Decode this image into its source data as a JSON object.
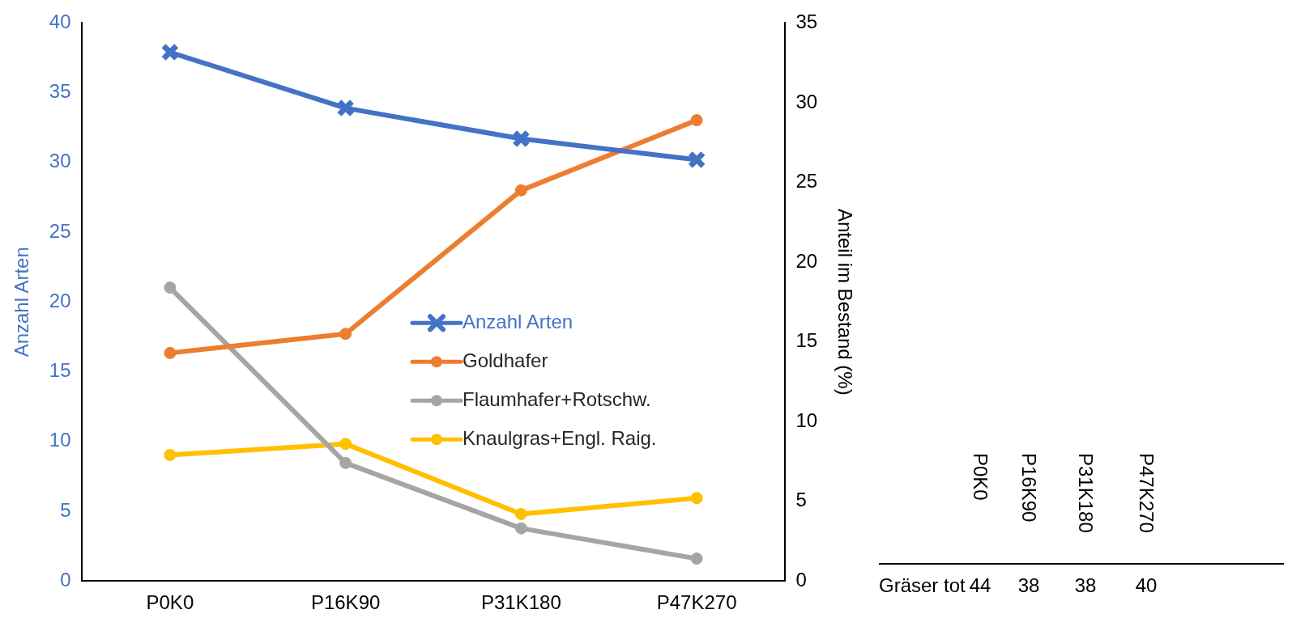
{
  "chart_data": [
    {
      "type": "line",
      "categories": [
        "P0K0",
        "P16K90",
        "P31K180",
        "P47K270"
      ],
      "ylabel": "Anzahl Arten",
      "y2label": "Anteil im Bestand (%)",
      "ylim": [
        0,
        40
      ],
      "yticks": [
        0,
        5,
        10,
        15,
        20,
        25,
        30,
        35,
        40
      ],
      "y2lim": [
        0,
        35
      ],
      "y2ticks": [
        0,
        5,
        10,
        15,
        20,
        25,
        30,
        35
      ],
      "grid": false,
      "legend": "right",
      "series": [
        {
          "name": "Anzahl Arten",
          "color": "#4472c4",
          "marker": "cross",
          "values": [
            37.9,
            33.9,
            31.7,
            30.2
          ]
        },
        {
          "name": "Goldhafer",
          "color": "#ed7d31",
          "marker": "circle",
          "axis": "y2",
          "values": [
            14.3,
            15.5,
            24.5,
            28.9
          ]
        },
        {
          "name": "Flaumhafer+Rotschw.",
          "color": "#a5a5a5",
          "marker": "circle",
          "axis": "y2",
          "values": [
            18.4,
            7.4,
            3.3,
            1.4
          ]
        },
        {
          "name": "Knaulgras+Engl. Raig.",
          "color": "#ffc000",
          "marker": "circle",
          "axis": "y2",
          "values": [
            7.9,
            8.6,
            4.2,
            5.2
          ]
        }
      ]
    },
    {
      "type": "other",
      "categories": [
        "P0K0",
        "P16K90",
        "P31K180",
        "P47K270"
      ],
      "data_labels": true,
      "series": [
        {
          "name": "Gräser tot",
          "values": [
            44,
            38,
            38,
            40
          ]
        }
      ]
    }
  ]
}
